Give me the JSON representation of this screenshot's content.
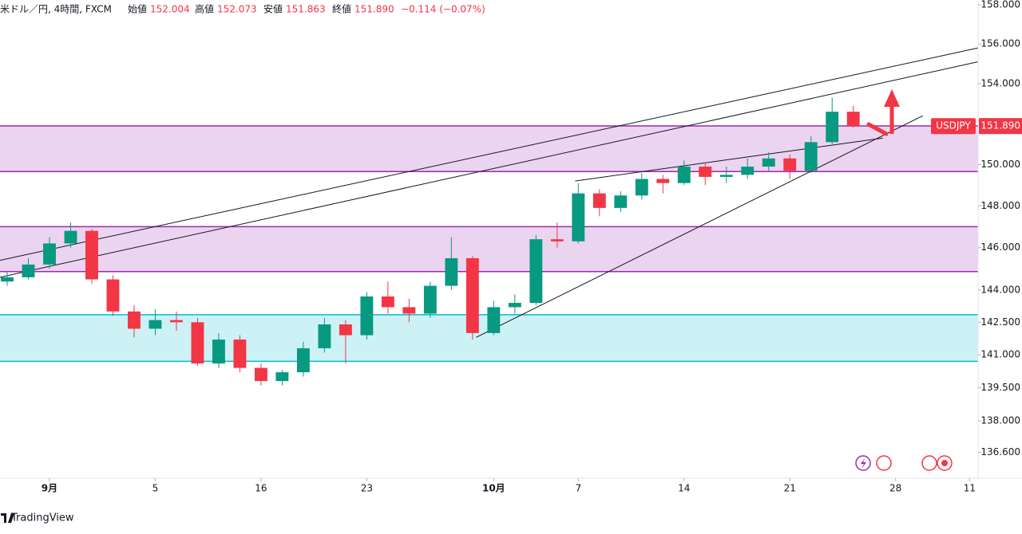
{
  "header": {
    "symbol": "米ドル／円, 4時間, FXCM",
    "open_label": "始値",
    "open": "152.004",
    "high_label": "高値",
    "high": "152.073",
    "low_label": "安値",
    "low": "151.863",
    "close_label": "終値",
    "close": "151.890",
    "change": "−0.114 (−0.07%)"
  },
  "footer": {
    "brand": "TradingView"
  },
  "chart_data": {
    "type": "candlestick",
    "log_scale": true,
    "grid": false,
    "up_color": "#089981",
    "down_color": "#f23645",
    "x": [
      -2,
      -1,
      0,
      1,
      2,
      3,
      4,
      5,
      6,
      7,
      8,
      9,
      10,
      11,
      12,
      13,
      14,
      15,
      16,
      17,
      18,
      19,
      20,
      21,
      22,
      23,
      24,
      25,
      26,
      27,
      28,
      29,
      30,
      31,
      32,
      33,
      34,
      35,
      36,
      37,
      38
    ],
    "open": [
      144.4,
      144.6,
      145.2,
      146.2,
      146.8,
      144.5,
      143.0,
      142.2,
      142.6,
      142.5,
      140.6,
      141.7,
      140.4,
      139.8,
      140.2,
      141.3,
      142.4,
      141.9,
      143.7,
      143.2,
      142.9,
      144.2,
      145.5,
      142.0,
      143.2,
      143.4,
      146.4,
      146.3,
      148.6,
      147.9,
      148.5,
      149.3,
      149.1,
      149.9,
      149.4,
      149.5,
      149.9,
      150.3,
      149.7,
      151.1,
      152.6
    ],
    "high": [
      144.9,
      145.5,
      146.5,
      147.2,
      146.9,
      144.7,
      143.3,
      143.1,
      143.0,
      142.7,
      142.0,
      141.9,
      140.6,
      140.3,
      141.6,
      142.7,
      142.6,
      143.9,
      144.4,
      143.6,
      144.4,
      146.5,
      145.6,
      143.5,
      143.8,
      146.6,
      147.2,
      149.1,
      148.8,
      148.7,
      149.6,
      149.5,
      150.2,
      150.1,
      149.9,
      150.3,
      150.6,
      150.5,
      151.4,
      153.3,
      152.9
    ],
    "low": [
      144.2,
      144.5,
      145.0,
      146.0,
      144.3,
      142.8,
      141.8,
      141.9,
      142.1,
      140.5,
      140.4,
      140.2,
      139.6,
      139.6,
      140.0,
      141.1,
      140.6,
      141.7,
      142.9,
      142.5,
      142.7,
      144.0,
      141.7,
      141.9,
      142.9,
      143.3,
      146.0,
      146.2,
      147.5,
      147.7,
      148.3,
      148.6,
      149.0,
      149.0,
      149.1,
      149.3,
      149.7,
      149.3,
      149.6,
      151.0,
      151.8
    ],
    "close": [
      144.6,
      145.2,
      146.2,
      146.8,
      144.5,
      143.0,
      142.2,
      142.6,
      142.5,
      140.6,
      141.7,
      140.4,
      139.8,
      140.2,
      141.3,
      142.4,
      141.9,
      143.7,
      143.2,
      142.9,
      144.2,
      145.5,
      142.0,
      143.2,
      143.4,
      146.4,
      146.3,
      148.6,
      147.9,
      148.5,
      149.3,
      149.1,
      149.9,
      149.4,
      149.5,
      149.9,
      150.3,
      149.7,
      151.1,
      152.6,
      151.89
    ],
    "xlim": [
      -2.34,
      43.9
    ],
    "xticks": [
      {
        "value": 0,
        "label": "9月"
      },
      5,
      {
        "value": 10,
        "label": "16"
      },
      {
        "value": 15,
        "label": "23"
      },
      {
        "value": 21,
        "label": "10月"
      },
      {
        "value": 25,
        "label": "7"
      },
      {
        "value": 30,
        "label": "14"
      },
      {
        "value": 35,
        "label": "21"
      },
      {
        "value": 40,
        "label": "28"
      },
      {
        "value": 43.5,
        "label": "11"
      }
    ],
    "ylim": [
      135.45,
      158.25
    ],
    "yticks": [
      {
        "value": 158,
        "label": "158.000"
      },
      {
        "value": 156,
        "label": "156.000"
      },
      {
        "value": 154,
        "label": "154.000"
      },
      {
        "value": 150,
        "label": "150.000"
      },
      {
        "value": 148,
        "label": "148.000"
      },
      {
        "value": 146,
        "label": "146.000"
      },
      {
        "value": 144,
        "label": "144.000"
      },
      {
        "value": 142.5,
        "label": "142.500"
      },
      {
        "value": 141,
        "label": "141.000"
      },
      {
        "value": 139.5,
        "label": "139.500"
      },
      {
        "value": 138,
        "label": "138.000"
      },
      {
        "value": 136.6,
        "label": "136.600"
      }
    ],
    "symbol": "USDJPY",
    "last_price": {
      "value": 151.89,
      "label": "151.890"
    },
    "zones": [
      {
        "low": 149.66,
        "high": 151.9,
        "color": "#9c27b0"
      },
      {
        "low": 144.87,
        "high": 147.0,
        "color": "#9c27b0"
      },
      {
        "low": 140.7,
        "high": 142.85,
        "color": "#00bcd4"
      }
    ],
    "trendlines": [
      {
        "x": [
          -2.34,
          43.9
        ],
        "y": [
          145.4,
          155.8
        ]
      },
      {
        "x": [
          -2.34,
          43.9
        ],
        "y": [
          144.6,
          155.1
        ]
      },
      {
        "x": [
          20.17,
          41.28
        ],
        "y": [
          141.8,
          152.4
        ]
      },
      {
        "x": [
          24.85,
          39.4
        ],
        "y": [
          149.2,
          151.3
        ]
      }
    ]
  }
}
